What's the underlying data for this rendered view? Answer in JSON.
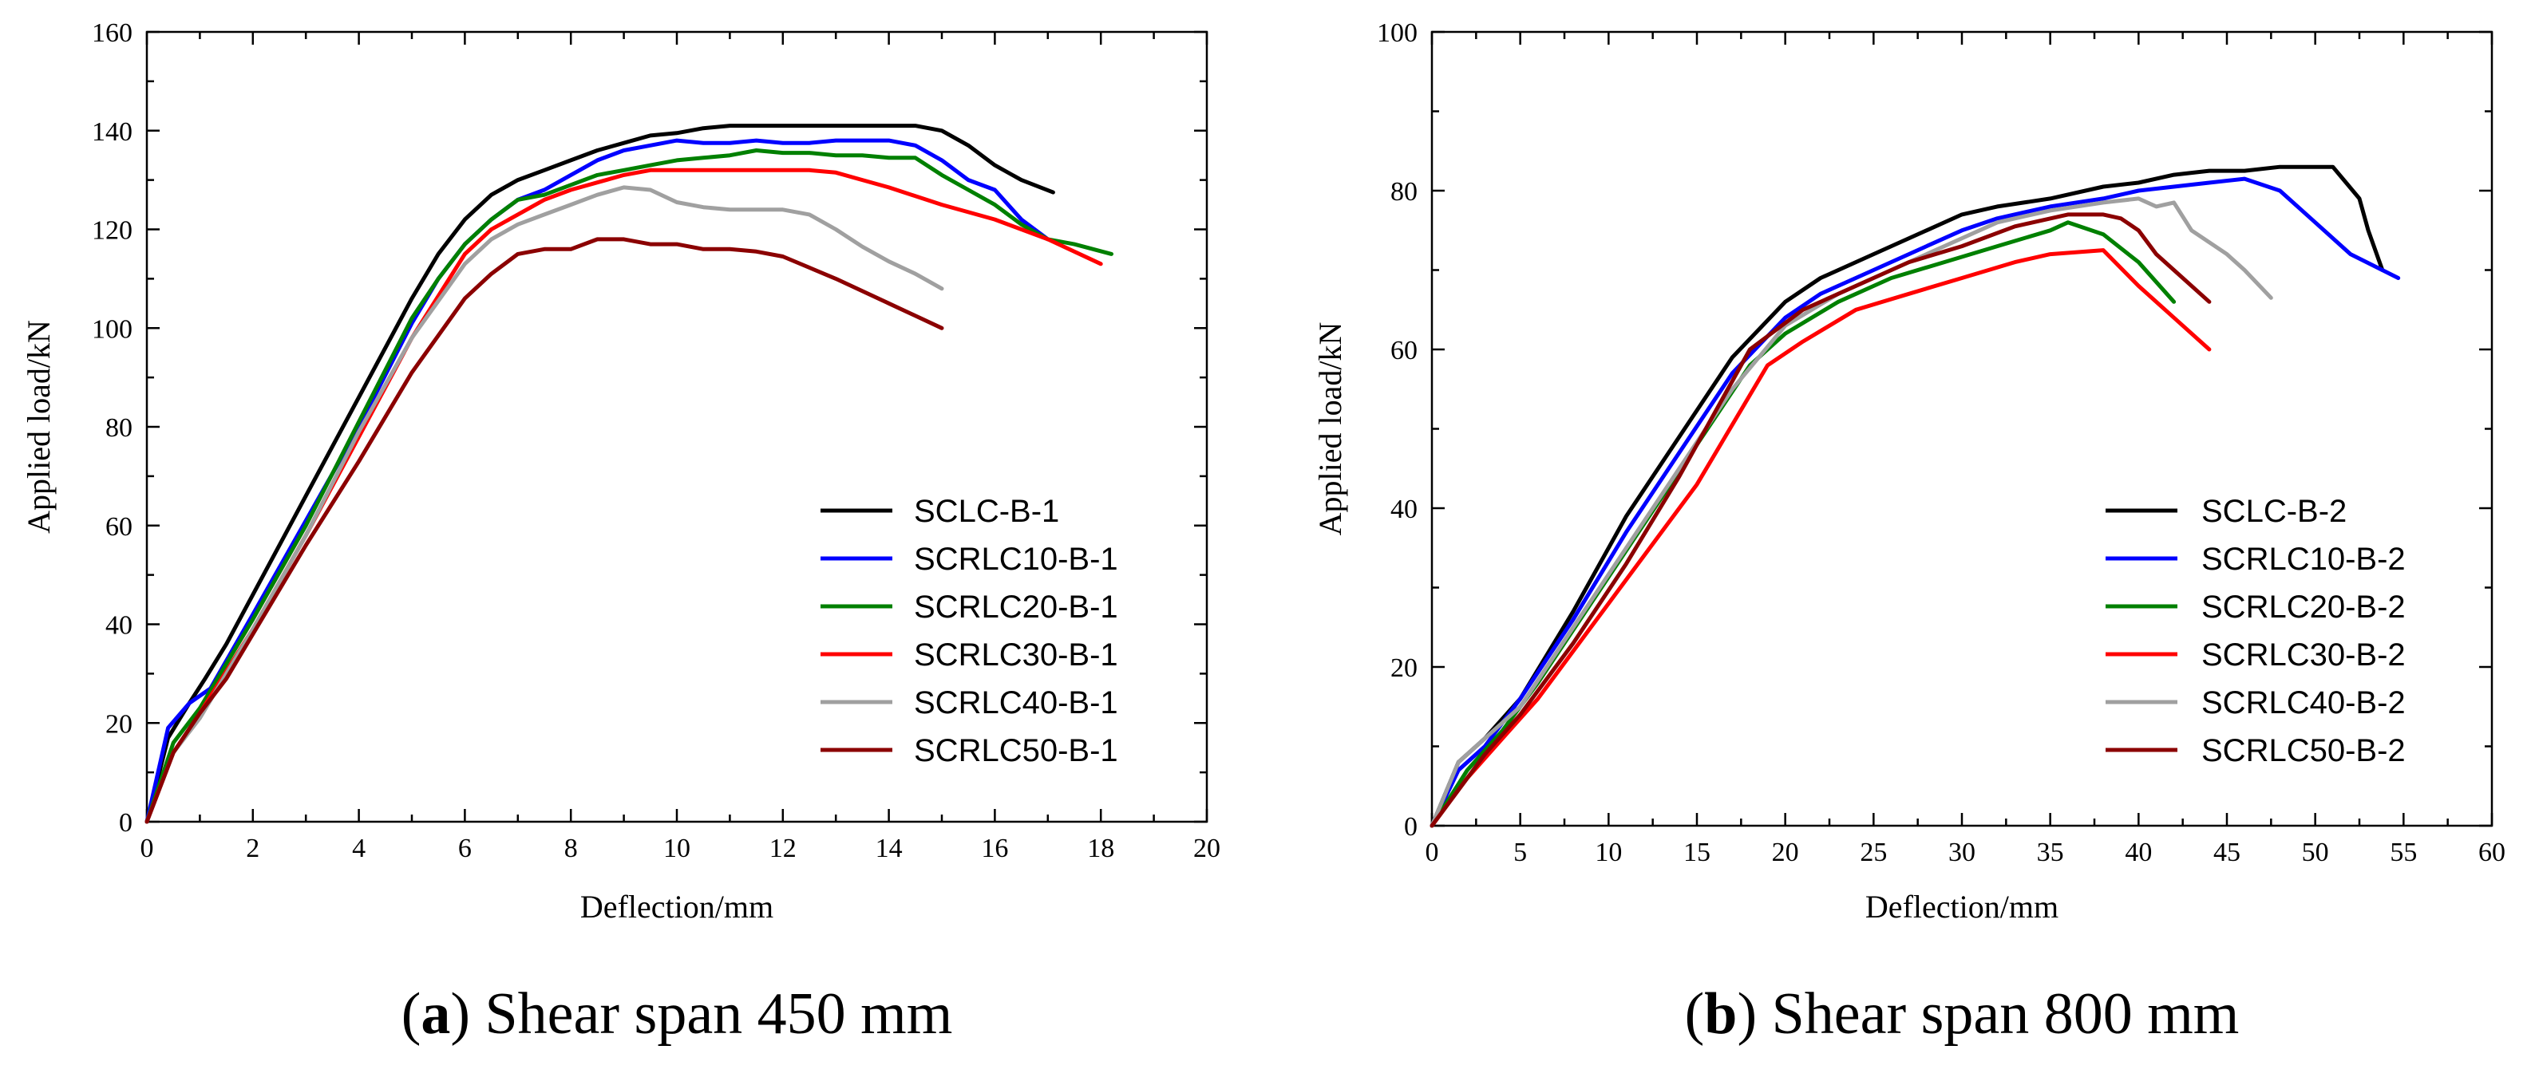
{
  "chart_data": [
    {
      "type": "line",
      "panel": "a",
      "caption_label": "(a)",
      "caption_text": " Shear span 450 mm",
      "xlabel": "Deflection/mm",
      "ylabel": "Applied load/kN",
      "xlim": [
        0,
        20
      ],
      "ylim": [
        0,
        160
      ],
      "xticks": [
        0,
        2,
        4,
        6,
        8,
        10,
        12,
        14,
        16,
        18,
        20
      ],
      "yticks": [
        0,
        20,
        40,
        60,
        80,
        100,
        120,
        140,
        160
      ],
      "legend_position": "bottom-right",
      "series": [
        {
          "name": "SCLC-B-1",
          "color": "#000000",
          "x": [
            0,
            0.4,
            0.8,
            1.1,
            1.5,
            2,
            3,
            4,
            5,
            5.5,
            6,
            6.5,
            7,
            7.5,
            8,
            8.5,
            9,
            9.5,
            10,
            10.5,
            11,
            11.5,
            12,
            12.5,
            13,
            13.5,
            14,
            14.5,
            15,
            15.5,
            16,
            16.5,
            17.1
          ],
          "y": [
            0,
            17,
            24,
            29,
            36,
            46,
            66,
            86,
            106,
            115,
            122,
            127,
            130,
            132,
            134,
            136,
            137.5,
            139,
            139.5,
            140.5,
            141,
            141,
            141,
            141,
            141,
            141,
            141,
            141,
            140,
            137,
            133,
            130,
            127.5
          ]
        },
        {
          "name": "SCRLC10-B-1",
          "color": "#0000ff",
          "x": [
            0,
            0.4,
            0.8,
            1.2,
            2,
            3,
            4,
            5,
            5.5,
            6,
            6.5,
            7,
            7.5,
            8,
            8.5,
            9,
            9.5,
            10,
            10.5,
            11,
            11.5,
            12,
            12.5,
            13,
            13.5,
            14,
            14.5,
            15,
            15.5,
            16,
            16.5,
            17
          ],
          "y": [
            0,
            19,
            24,
            27,
            42,
            61,
            80,
            101,
            110,
            117,
            122,
            126,
            128,
            131,
            134,
            136,
            137,
            138,
            137.5,
            137.5,
            138,
            137.5,
            137.5,
            138,
            138,
            138,
            137,
            134,
            130,
            128,
            122,
            118
          ]
        },
        {
          "name": "SCRLC20-B-1",
          "color": "#008000",
          "x": [
            0,
            0.5,
            1,
            2,
            3,
            4,
            5,
            5.5,
            6,
            6.5,
            7,
            7.5,
            8,
            8.5,
            9,
            9.5,
            10,
            10.5,
            11,
            11.5,
            12,
            12.5,
            13,
            13.5,
            14,
            14.5,
            15,
            15.5,
            16,
            16.5,
            17,
            17.5,
            18.2
          ],
          "y": [
            0,
            16,
            23,
            41,
            60,
            81,
            102,
            110,
            117,
            122,
            126,
            127,
            129,
            131,
            132,
            133,
            134,
            134.5,
            135,
            136,
            135.5,
            135.5,
            135,
            135,
            134.5,
            134.5,
            131,
            128,
            125,
            121,
            118,
            117,
            115
          ]
        },
        {
          "name": "SCRLC30-B-1",
          "color": "#ff0000",
          "x": [
            0,
            0.5,
            1,
            2,
            3,
            4,
            5,
            6,
            6.5,
            7,
            7.5,
            8,
            8.5,
            9,
            9.5,
            10,
            10.5,
            11,
            11.5,
            12,
            12.5,
            13,
            13.5,
            14,
            15,
            16,
            17,
            18
          ],
          "y": [
            0,
            14,
            22,
            39,
            58,
            78,
            98,
            115,
            120,
            123,
            126,
            128,
            129.5,
            131,
            132,
            132,
            132,
            132,
            132,
            132,
            132,
            131.5,
            130,
            128.5,
            125,
            122,
            118,
            113
          ]
        },
        {
          "name": "SCRLC40-B-1",
          "color": "#a0a0a0",
          "x": [
            0,
            0.5,
            1,
            2,
            3,
            4,
            5,
            6,
            6.5,
            7,
            7.5,
            8,
            8.5,
            9,
            9.5,
            10,
            10.5,
            11,
            11.5,
            12,
            12.5,
            13,
            13.5,
            14,
            14.5,
            15
          ],
          "y": [
            0,
            14,
            21,
            39,
            58,
            79,
            98,
            113,
            118,
            121,
            123,
            125,
            127,
            128.5,
            128,
            125.5,
            124.5,
            124,
            124,
            124,
            123,
            120,
            116.5,
            113.5,
            111,
            108
          ]
        },
        {
          "name": "SCRLC50-B-1",
          "color": "#8b0000",
          "x": [
            0,
            0.5,
            1,
            1.5,
            2,
            3,
            4,
            5,
            6,
            6.5,
            7,
            7.5,
            8,
            8.5,
            9,
            9.5,
            10,
            10.5,
            11,
            11.5,
            12,
            13,
            14,
            15
          ],
          "y": [
            0,
            14,
            22,
            29,
            38,
            56,
            73,
            91,
            106,
            111,
            115,
            116,
            116,
            118,
            118,
            117,
            117,
            116,
            116,
            115.5,
            114.5,
            110,
            105,
            100
          ]
        }
      ]
    },
    {
      "type": "line",
      "panel": "b",
      "caption_label": "(b)",
      "caption_text": " Shear span 800 mm",
      "xlabel": "Deflection/mm",
      "ylabel": "Applied load/kN",
      "xlim": [
        0,
        60
      ],
      "ylim": [
        0,
        100
      ],
      "xticks": [
        0,
        5,
        10,
        15,
        20,
        25,
        30,
        35,
        40,
        45,
        50,
        55,
        60
      ],
      "yticks": [
        0,
        20,
        40,
        60,
        80,
        100
      ],
      "legend_position": "bottom-right",
      "series": [
        {
          "name": "SCLC-B-2",
          "color": "#000000",
          "x": [
            0,
            1.5,
            3,
            5,
            8,
            11,
            14,
            17,
            20,
            22,
            25,
            28,
            30,
            32,
            35,
            38,
            40,
            42,
            44,
            46,
            48,
            50,
            51,
            52.5,
            53,
            53.8
          ],
          "y": [
            0,
            8,
            11,
            16,
            27,
            39,
            49,
            59,
            66,
            69,
            72,
            75,
            77,
            78,
            79,
            80.5,
            81,
            82,
            82.5,
            82.5,
            83,
            83,
            83,
            79,
            75,
            70
          ]
        },
        {
          "name": "SCRLC10-B-2",
          "color": "#0000ff",
          "x": [
            0,
            1.5,
            3,
            5,
            8,
            11,
            14,
            17,
            20,
            22,
            25,
            28,
            30,
            32,
            35,
            38,
            40,
            42,
            44,
            46,
            48,
            50,
            52,
            54.7
          ],
          "y": [
            0,
            7,
            10,
            16,
            26,
            37,
            47,
            57,
            64,
            67,
            70,
            73,
            75,
            76.5,
            78,
            79,
            80,
            80.5,
            81,
            81.5,
            80,
            76,
            72,
            69
          ]
        },
        {
          "name": "SCRLC20-B-2",
          "color": "#008000",
          "x": [
            0,
            2,
            4,
            6,
            9,
            12,
            15,
            18,
            20,
            23,
            26,
            29,
            32,
            35,
            36,
            38,
            40,
            42
          ],
          "y": [
            0,
            7,
            12,
            18,
            28,
            38,
            48,
            58,
            62,
            66,
            69,
            71,
            73,
            75,
            76,
            74.5,
            71,
            66
          ]
        },
        {
          "name": "SCRLC30-B-2",
          "color": "#ff0000",
          "x": [
            0,
            2,
            4,
            6,
            9,
            12,
            15,
            19,
            21,
            24,
            27,
            30,
            33,
            35,
            38,
            40,
            42,
            44
          ],
          "y": [
            0,
            6,
            11,
            16,
            25,
            34,
            43,
            58,
            61,
            65,
            67,
            69,
            71,
            72,
            72.5,
            68,
            64,
            60
          ]
        },
        {
          "name": "SCRLC40-B-2",
          "color": "#a0a0a0",
          "x": [
            0,
            1.5,
            3,
            5,
            8,
            11,
            14,
            17,
            20,
            23,
            26,
            29,
            32,
            35,
            38,
            40,
            41,
            42,
            43,
            45,
            46,
            47.5
          ],
          "y": [
            0,
            8,
            11,
            15,
            25,
            35,
            45,
            55,
            63,
            67,
            70,
            73,
            76,
            77.5,
            78.5,
            79,
            78,
            78.5,
            75,
            72,
            70,
            66.5
          ]
        },
        {
          "name": "SCRLC50-B-2",
          "color": "#8b0000",
          "x": [
            0,
            2,
            3,
            5,
            8,
            11,
            14,
            18,
            21,
            24,
            27,
            30,
            33,
            36,
            38,
            39,
            40,
            41,
            42,
            44
          ],
          "y": [
            0,
            6,
            9,
            14,
            23,
            33,
            44,
            60,
            65,
            68,
            71,
            73,
            75.5,
            77,
            77,
            76.5,
            75,
            72,
            70,
            66
          ]
        }
      ]
    }
  ]
}
